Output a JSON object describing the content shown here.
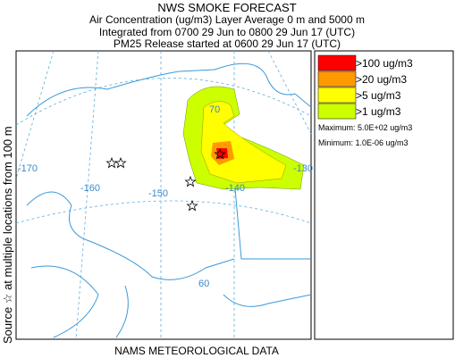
{
  "header": {
    "title": "NWS SMOKE FORECAST",
    "lines": [
      "Air Concentration (ug/m3) Layer Average    0 m and  5000 m",
      "Integrated from 0700 29 Jun to 0800 29 Jun 17 (UTC)",
      "PM25 Release started at 0600 29 Jun 17 (UTC)"
    ]
  },
  "side_label": "Source ☆ at multiple locations from  100 m",
  "footer": "NAMS METEOROLOGICAL DATA",
  "legend": {
    "items": [
      {
        "label": ">100 ug/m3",
        "color": "#ff0000"
      },
      {
        "label": ">20 ug/m3",
        "color": "#ff9900"
      },
      {
        "label": ">5 ug/m3",
        "color": "#ffff00"
      },
      {
        "label": ">1 ug/m3",
        "color": "#ccff00"
      }
    ],
    "maximum": "Maximum: 5.0E+02 ug/m3",
    "minimum": "Minimum: 1.0E-06 ug/m3"
  },
  "map": {
    "graticule_labels": [
      "-170",
      "-160",
      "-150",
      "-140",
      "-130",
      "70",
      "60"
    ]
  }
}
